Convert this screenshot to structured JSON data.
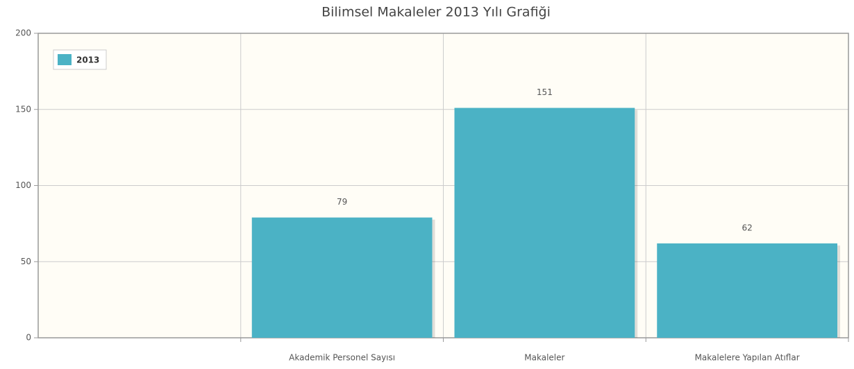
{
  "chart_data": {
    "type": "bar",
    "title": "Bilimsel Makaleler 2013 Yılı Grafiği",
    "categories": [
      null,
      "Akademik Personel Sayısı",
      "Makaleler",
      "Makalelere Yapılan Atıflar"
    ],
    "series": [
      {
        "name": "2013",
        "color": "#4bb2c5",
        "values": [
          null,
          79,
          151,
          62
        ]
      }
    ],
    "ylim": [
      0,
      200
    ],
    "yticks": [
      0,
      50,
      100,
      150,
      200
    ],
    "grid": true,
    "legend": "top-left",
    "show_value_labels": true
  }
}
